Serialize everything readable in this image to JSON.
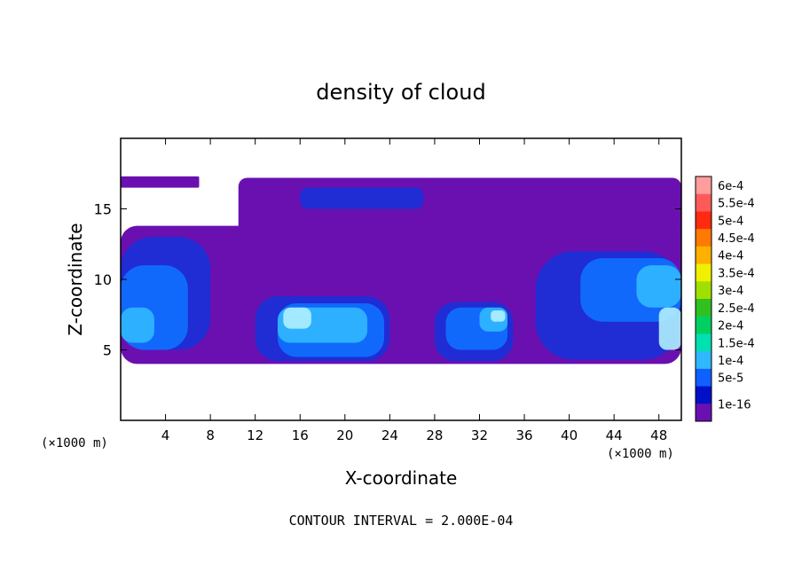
{
  "chart_data": {
    "type": "heatmap",
    "title": "density of cloud",
    "xlabel": "X-coordinate",
    "ylabel": "Z-coordinate",
    "x_unit_left": "(×1000 m)",
    "x_unit_right": "(×1000 m)",
    "xlim": [
      0,
      50
    ],
    "ylim": [
      0,
      20
    ],
    "x_ticks": [
      "4",
      "8",
      "12",
      "16",
      "20",
      "24",
      "28",
      "32",
      "36",
      "40",
      "44",
      "48"
    ],
    "x_tick_values": [
      4,
      8,
      12,
      16,
      20,
      24,
      28,
      32,
      36,
      40,
      44,
      48
    ],
    "y_ticks": [
      "5",
      "10",
      "15"
    ],
    "y_tick_values": [
      5,
      10,
      15
    ],
    "footer": "CONTOUR INTERVAL = 2.000E-04",
    "colorbar": {
      "levels": [
        "6e-4",
        "5.5e-4",
        "5e-4",
        "4.5e-4",
        "4e-4",
        "3.5e-4",
        "3e-4",
        "2.5e-4",
        "2e-4",
        "1.5e-4",
        "1e-4",
        "5e-5",
        "1e-16"
      ],
      "colors": [
        "#ff9c9c",
        "#ff5a5a",
        "#ff2a10",
        "#ff7a00",
        "#ffb000",
        "#f0f000",
        "#a0e000",
        "#30c020",
        "#00d060",
        "#00e0b0",
        "#30b8ff",
        "#1060ff",
        "#0010c8",
        "#6a10b0"
      ]
    },
    "cloud_regions": [
      {
        "level": 0,
        "x": [
          0,
          7
        ],
        "z": [
          16.5,
          17.3
        ]
      },
      {
        "level": 0,
        "x": [
          10.5,
          50
        ],
        "z": [
          12,
          17.2
        ]
      },
      {
        "level": 0,
        "x": [
          0,
          50
        ],
        "z": [
          4,
          13.8
        ]
      },
      {
        "level": 1,
        "x": [
          16,
          27
        ],
        "z": [
          15,
          16.5
        ]
      },
      {
        "level": 1,
        "x": [
          0,
          8
        ],
        "z": [
          5,
          13
        ]
      },
      {
        "level": 1,
        "x": [
          12,
          24
        ],
        "z": [
          4.2,
          8.8
        ]
      },
      {
        "level": 1,
        "x": [
          28,
          35
        ],
        "z": [
          4.2,
          8.4
        ]
      },
      {
        "level": 1,
        "x": [
          37,
          50
        ],
        "z": [
          4.3,
          12
        ]
      },
      {
        "level": 2,
        "x": [
          0,
          6
        ],
        "z": [
          5,
          11
        ]
      },
      {
        "level": 2,
        "x": [
          14,
          23.5
        ],
        "z": [
          4.5,
          8.3
        ]
      },
      {
        "level": 2,
        "x": [
          29,
          34.5
        ],
        "z": [
          5,
          8
        ]
      },
      {
        "level": 2,
        "x": [
          41,
          50
        ],
        "z": [
          7,
          11.5
        ]
      },
      {
        "level": 3,
        "x": [
          0,
          3
        ],
        "z": [
          5.5,
          8
        ]
      },
      {
        "level": 3,
        "x": [
          14,
          22
        ],
        "z": [
          5.5,
          8
        ]
      },
      {
        "level": 3,
        "x": [
          32,
          34.5
        ],
        "z": [
          6.3,
          8
        ]
      },
      {
        "level": 3,
        "x": [
          46,
          50
        ],
        "z": [
          8,
          11
        ]
      },
      {
        "level": 4,
        "x": [
          14.5,
          17
        ],
        "z": [
          6.5,
          8
        ]
      },
      {
        "level": 4,
        "x": [
          33,
          34.3
        ],
        "z": [
          7,
          7.8
        ]
      },
      {
        "level": 4,
        "x": [
          48,
          50
        ],
        "z": [
          5,
          8
        ]
      }
    ]
  }
}
